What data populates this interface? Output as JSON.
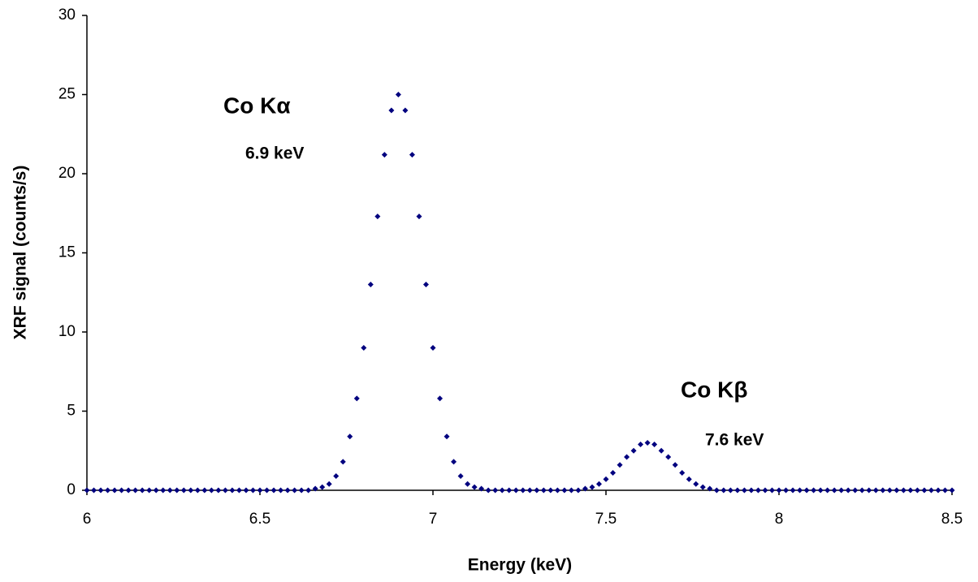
{
  "chart_data": {
    "type": "scatter",
    "x_label": "Energy (keV)",
    "y_label": "XRF signal (counts/s)",
    "annotations": [
      "Co Kα",
      "6.9 keV",
      "Co Kβ",
      "7.6 keV"
    ],
    "color": "#00007f",
    "grid": false,
    "xlim": [
      6,
      8.5
    ],
    "xticks": [
      6,
      6.5,
      7,
      7.5,
      8,
      8.5
    ],
    "ylim": [
      0,
      30
    ],
    "yticks": [
      0,
      5,
      10,
      15,
      20,
      25,
      30
    ],
    "x": [
      6,
      6.02,
      6.04,
      6.06,
      6.08,
      6.1,
      6.12,
      6.14,
      6.16,
      6.18,
      6.2,
      6.22,
      6.24,
      6.26,
      6.28,
      6.3,
      6.32,
      6.34,
      6.36,
      6.38,
      6.4,
      6.42,
      6.44,
      6.46,
      6.48,
      6.5,
      6.52,
      6.54,
      6.56,
      6.58,
      6.6,
      6.62,
      6.64,
      6.66,
      6.68,
      6.7,
      6.72,
      6.74,
      6.76,
      6.78,
      6.8,
      6.82,
      6.84,
      6.86,
      6.88,
      6.9,
      6.92,
      6.94,
      6.96,
      6.98,
      7,
      7.02,
      7.04,
      7.06,
      7.08,
      7.1,
      7.12,
      7.14,
      7.16,
      7.18,
      7.2,
      7.22,
      7.24,
      7.26,
      7.28,
      7.3,
      7.32,
      7.34,
      7.36,
      7.38,
      7.4,
      7.42,
      7.44,
      7.46,
      7.48,
      7.5,
      7.52,
      7.54,
      7.56,
      7.58,
      7.6,
      7.62,
      7.64,
      7.66,
      7.68,
      7.7,
      7.72,
      7.74,
      7.76,
      7.78,
      7.8,
      7.82,
      7.84,
      7.86,
      7.88,
      7.9,
      7.92,
      7.94,
      7.96,
      7.98,
      8,
      8.02,
      8.04,
      8.06,
      8.08,
      8.1,
      8.12,
      8.14,
      8.16,
      8.18,
      8.2,
      8.22,
      8.24,
      8.26,
      8.28,
      8.3,
      8.32,
      8.34,
      8.36,
      8.38,
      8.4,
      8.42,
      8.44,
      8.46,
      8.48,
      8.5
    ],
    "values": [
      0,
      0,
      0,
      0,
      0,
      0,
      0,
      0,
      0,
      0,
      0,
      0,
      0,
      0,
      0,
      0,
      0,
      0,
      0,
      0,
      0,
      0,
      0,
      0,
      0,
      0,
      0,
      0,
      0,
      0,
      0,
      0,
      0,
      0.1,
      0.2,
      0.4,
      0.9,
      1.8,
      3.4,
      5.8,
      9.0,
      13.0,
      17.3,
      21.2,
      24.0,
      25.0,
      24.0,
      21.2,
      17.3,
      13.0,
      9.0,
      5.8,
      3.4,
      1.8,
      0.9,
      0.4,
      0.2,
      0.1,
      0,
      0,
      0,
      0,
      0,
      0,
      0,
      0,
      0,
      0,
      0,
      0,
      0,
      0,
      0.1,
      0.2,
      0.4,
      0.7,
      1.1,
      1.6,
      2.1,
      2.5,
      2.9,
      3.0,
      2.9,
      2.5,
      2.1,
      1.6,
      1.1,
      0.7,
      0.4,
      0.2,
      0.1,
      0,
      0,
      0,
      0,
      0,
      0,
      0,
      0,
      0,
      0,
      0,
      0,
      0,
      0,
      0,
      0,
      0,
      0,
      0,
      0,
      0,
      0,
      0,
      0,
      0,
      0,
      0,
      0,
      0,
      0,
      0,
      0,
      0,
      0,
      0
    ]
  }
}
